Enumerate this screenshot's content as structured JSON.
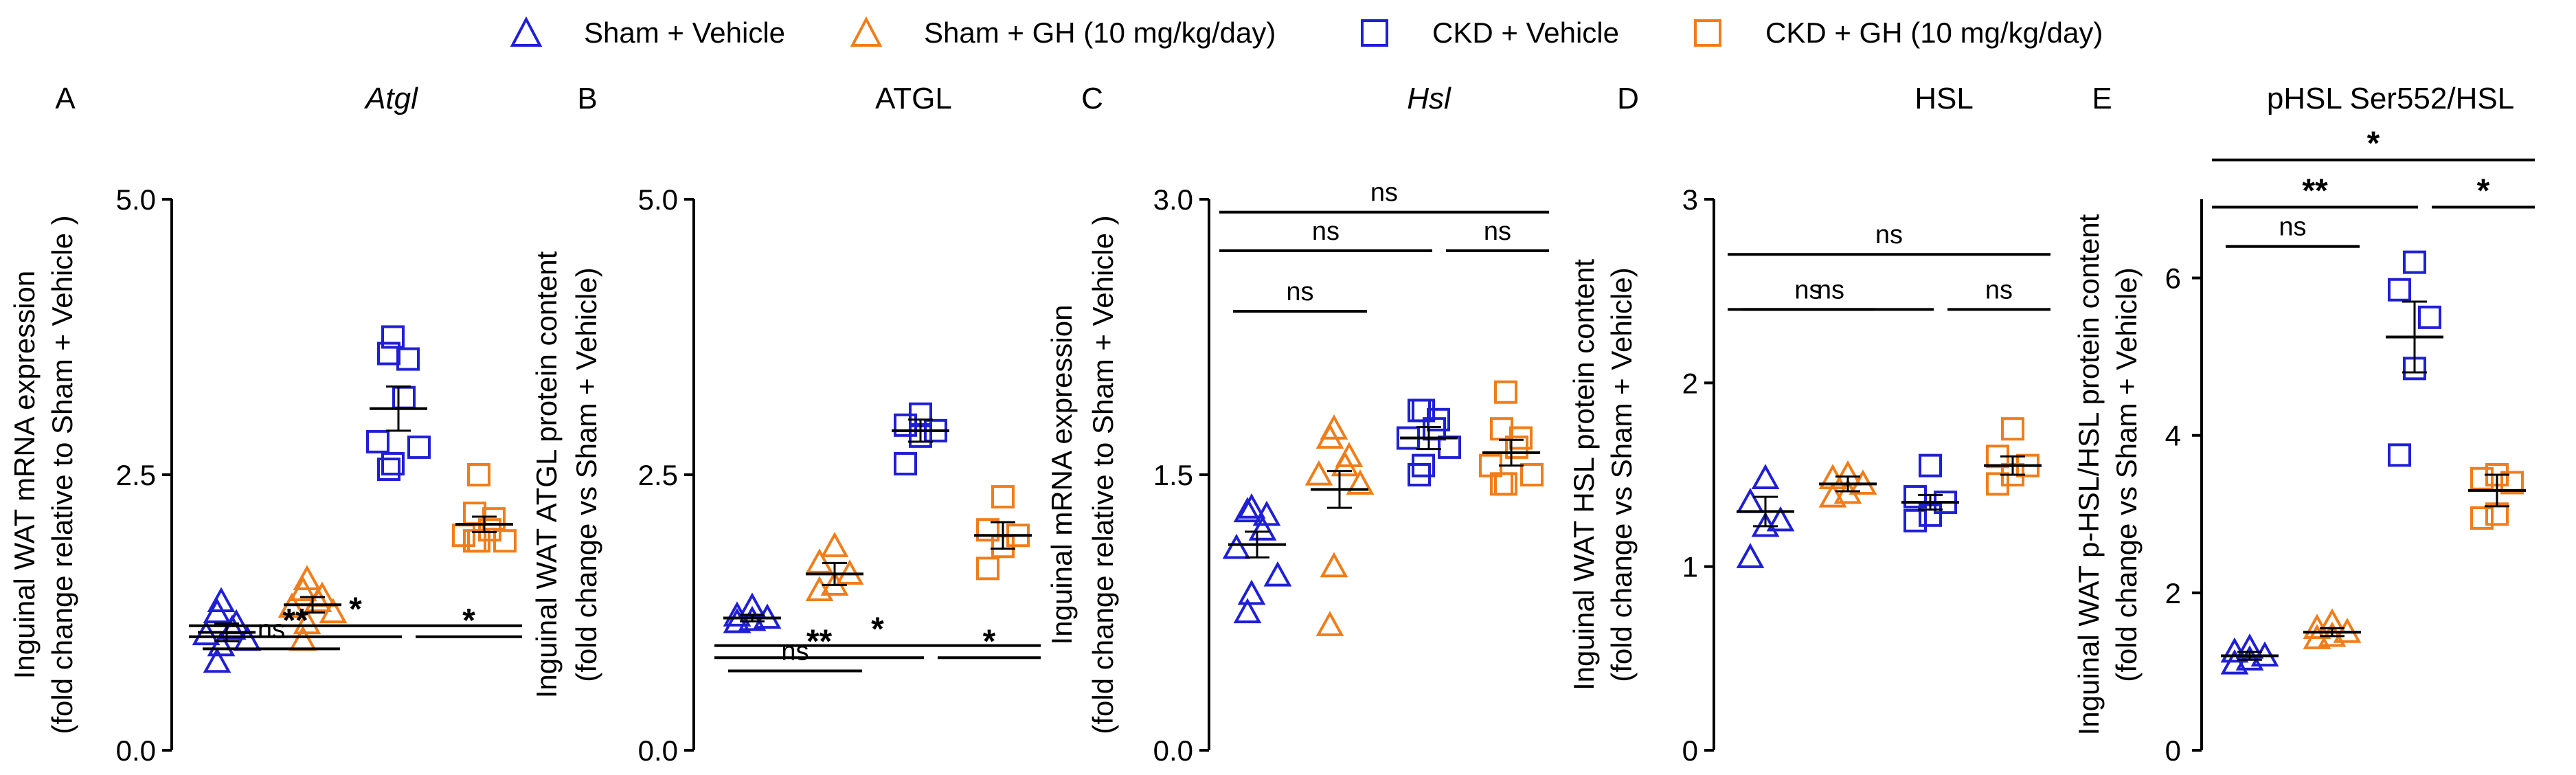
{
  "legend": [
    {
      "label": "Sham + Vehicle",
      "color": "#1f1fd6",
      "marker": "triangle"
    },
    {
      "label": "Sham + GH (10 mg/kg/day)",
      "color": "#f07d1a",
      "marker": "triangle"
    },
    {
      "label": "CKD + Vehicle",
      "color": "#1f1fd6",
      "marker": "square"
    },
    {
      "label": "CKD + GH (10 mg/kg/day)",
      "color": "#f07d1a",
      "marker": "square"
    }
  ],
  "chart_data": [
    {
      "type": "scatter",
      "panel_letter": "A",
      "title": "Atgl",
      "title_italic": true,
      "ylabel": [
        "Inguinal WAT mRNA expression",
        "(fold change relative to Sham + Vehicle )"
      ],
      "ylim": [
        0,
        5
      ],
      "yticks": [
        "0.0",
        "2.5",
        "5.0"
      ],
      "ytick_values": [
        0,
        2.5,
        5
      ],
      "groups": [
        {
          "name": "Sham + Vehicle",
          "marker": "triangle",
          "color": "#1f1fd6",
          "mean": 1.07,
          "sem": 0.08,
          "values": [
            1.35,
            1.25,
            1.15,
            1.1,
            1.05,
            1.0,
            0.95,
            0.8
          ]
        },
        {
          "name": "Sham + GH (10 mg/kg/day)",
          "marker": "triangle",
          "color": "#f07d1a",
          "mean": 1.32,
          "sem": 0.07,
          "values": [
            1.55,
            1.45,
            1.4,
            1.35,
            1.3,
            1.25,
            1.15,
            1.0
          ]
        },
        {
          "name": "CKD + Vehicle",
          "marker": "square",
          "color": "#1f1fd6",
          "mean": 3.1,
          "sem": 0.2,
          "values": [
            3.75,
            3.6,
            3.55,
            3.2,
            2.8,
            2.75,
            2.6,
            2.55
          ]
        },
        {
          "name": "CKD + GH (10 mg/kg/day)",
          "marker": "square",
          "color": "#f07d1a",
          "mean": 2.05,
          "sem": 0.07,
          "values": [
            2.5,
            2.15,
            2.1,
            2.0,
            1.95,
            1.9,
            1.9,
            1.9
          ]
        }
      ],
      "comparisons": [
        {
          "from": 0,
          "to": 1,
          "label": "ns",
          "level": 0.92
        },
        {
          "from": 0,
          "to": 2,
          "label": "**",
          "level": 1.03
        },
        {
          "from": 2,
          "to": 3,
          "label": "*",
          "level": 1.03
        },
        {
          "from": 0,
          "to": 3,
          "label": "*",
          "level": 1.13
        }
      ]
    },
    {
      "type": "scatter",
      "panel_letter": "B",
      "title": "ATGL",
      "title_italic": false,
      "ylabel": [
        "Inguinal WAT ATGL protein content",
        "(fold change vs Sham + Vehicle)"
      ],
      "ylim": [
        0,
        5
      ],
      "yticks": [
        "0.0",
        "2.5",
        "5.0"
      ],
      "ytick_values": [
        0,
        2.5,
        5
      ],
      "groups": [
        {
          "name": "Sham + Vehicle",
          "marker": "triangle",
          "color": "#1f1fd6",
          "mean": 1.2,
          "sem": 0.03,
          "values": [
            1.3,
            1.22,
            1.2,
            1.18,
            1.16
          ]
        },
        {
          "name": "Sham + GH (10 mg/kg/day)",
          "marker": "triangle",
          "color": "#f07d1a",
          "mean": 1.6,
          "sem": 0.1,
          "values": [
            1.85,
            1.7,
            1.6,
            1.5,
            1.45
          ]
        },
        {
          "name": "CKD + Vehicle",
          "marker": "square",
          "color": "#1f1fd6",
          "mean": 2.9,
          "sem": 0.1,
          "values": [
            3.05,
            2.95,
            2.9,
            2.85,
            2.6
          ]
        },
        {
          "name": "CKD + GH (10 mg/kg/day)",
          "marker": "square",
          "color": "#f07d1a",
          "mean": 1.95,
          "sem": 0.12,
          "values": [
            2.3,
            2.0,
            1.95,
            1.85,
            1.65
          ]
        }
      ],
      "comparisons": [
        {
          "from": 0,
          "to": 1,
          "label": "ns",
          "level": 0.72
        },
        {
          "from": 0,
          "to": 2,
          "label": "**",
          "level": 0.84
        },
        {
          "from": 2,
          "to": 3,
          "label": "*",
          "level": 0.84
        },
        {
          "from": 0,
          "to": 3,
          "label": "*",
          "level": 0.95
        }
      ]
    },
    {
      "type": "scatter",
      "panel_letter": "C",
      "title": "Hsl",
      "title_italic": true,
      "ylabel": [
        "Inguinal mRNA expression",
        "(fold change relative to Sham + Vehicle )"
      ],
      "ylim": [
        0,
        3
      ],
      "yticks": [
        "0.0",
        "1.5",
        "3.0"
      ],
      "ytick_values": [
        0,
        1.5,
        3
      ],
      "groups": [
        {
          "name": "Sham + Vehicle",
          "marker": "triangle",
          "color": "#1f1fd6",
          "mean": 1.12,
          "sem": 0.07,
          "values": [
            1.32,
            1.3,
            1.28,
            1.2,
            1.1,
            0.95,
            0.85,
            0.75
          ]
        },
        {
          "name": "Sham + GH (10 mg/kg/day)",
          "marker": "triangle",
          "color": "#f07d1a",
          "mean": 1.42,
          "sem": 0.1,
          "values": [
            1.75,
            1.7,
            1.6,
            1.55,
            1.5,
            1.45,
            1.0,
            0.68
          ]
        },
        {
          "name": "CKD + Vehicle",
          "marker": "square",
          "color": "#1f1fd6",
          "mean": 1.7,
          "sem": 0.06,
          "values": [
            1.85,
            1.85,
            1.8,
            1.75,
            1.7,
            1.65,
            1.55,
            1.5
          ]
        },
        {
          "name": "CKD + GH (10 mg/kg/day)",
          "marker": "square",
          "color": "#f07d1a",
          "mean": 1.62,
          "sem": 0.07,
          "values": [
            1.95,
            1.75,
            1.7,
            1.65,
            1.55,
            1.5,
            1.45,
            1.45
          ]
        }
      ],
      "comparisons": [
        {
          "from": 0,
          "to": 1,
          "label": "ns",
          "level": 2.39
        },
        {
          "from": 0,
          "to": 2,
          "label": "ns",
          "level": 2.72
        },
        {
          "from": 2,
          "to": 3,
          "label": "ns",
          "level": 2.72
        },
        {
          "from": 0,
          "to": 3,
          "label": "ns",
          "level": 2.93
        }
      ]
    },
    {
      "type": "scatter",
      "panel_letter": "D",
      "title": "HSL",
      "title_italic": false,
      "ylabel": [
        "Inguinal WAT HSL protein content",
        "(fold change vs Sham + Vehicle)"
      ],
      "ylim": [
        0,
        3
      ],
      "yticks": [
        "0",
        "1",
        "2",
        "3"
      ],
      "ytick_values": [
        0,
        1,
        2,
        3
      ],
      "groups": [
        {
          "name": "Sham + Vehicle",
          "marker": "triangle",
          "color": "#1f1fd6",
          "mean": 1.3,
          "sem": 0.08,
          "values": [
            1.48,
            1.35,
            1.25,
            1.22,
            1.05
          ]
        },
        {
          "name": "Sham + GH (10 mg/kg/day)",
          "marker": "triangle",
          "color": "#f07d1a",
          "mean": 1.45,
          "sem": 0.04,
          "values": [
            1.5,
            1.48,
            1.45,
            1.4,
            1.38
          ]
        },
        {
          "name": "CKD + Vehicle",
          "marker": "square",
          "color": "#1f1fd6",
          "mean": 1.35,
          "sem": 0.04,
          "values": [
            1.55,
            1.38,
            1.35,
            1.28,
            1.25
          ]
        },
        {
          "name": "CKD + GH (10 mg/kg/day)",
          "marker": "square",
          "color": "#f07d1a",
          "mean": 1.55,
          "sem": 0.05,
          "values": [
            1.75,
            1.6,
            1.55,
            1.5,
            1.45
          ]
        }
      ],
      "comparisons": [
        {
          "from": 0,
          "to": 1,
          "label": "ns",
          "level": 2.4
        },
        {
          "from": 0,
          "to": 2,
          "label": "ns",
          "level": 2.4
        },
        {
          "from": 2,
          "to": 3,
          "label": "ns",
          "level": 2.4
        },
        {
          "from": 0,
          "to": 3,
          "label": "ns",
          "level": 2.7
        }
      ]
    },
    {
      "type": "scatter",
      "panel_letter": "E",
      "title": "pHSL Ser552/HSL",
      "title_italic": false,
      "ylabel": [
        "Inguinal WAT p-HSL/HSL protein content",
        "(fold change vs Sham + Vehicle)"
      ],
      "ylim": [
        0,
        7
      ],
      "yticks": [
        "0",
        "2",
        "4",
        "6"
      ],
      "ytick_values": [
        0,
        2,
        4,
        6
      ],
      "groups": [
        {
          "name": "Sham + Vehicle",
          "marker": "triangle",
          "color": "#1f1fd6",
          "mean": 1.2,
          "sem": 0.05,
          "values": [
            1.3,
            1.25,
            1.2,
            1.15,
            1.1
          ]
        },
        {
          "name": "Sham + GH (10 mg/kg/day)",
          "marker": "triangle",
          "color": "#f07d1a",
          "mean": 1.5,
          "sem": 0.05,
          "values": [
            1.62,
            1.55,
            1.5,
            1.45,
            1.42
          ]
        },
        {
          "name": "CKD + Vehicle",
          "marker": "square",
          "color": "#1f1fd6",
          "mean": 5.25,
          "sem": 0.45,
          "values": [
            6.2,
            5.85,
            5.5,
            4.85,
            3.75
          ]
        },
        {
          "name": "CKD + GH (10 mg/kg/day)",
          "marker": "square",
          "color": "#f07d1a",
          "mean": 3.3,
          "sem": 0.2,
          "values": [
            3.5,
            3.45,
            3.4,
            3.0,
            2.95
          ]
        }
      ],
      "comparisons": [
        {
          "from": 0,
          "to": 1,
          "label": "ns",
          "level": 6.4
        },
        {
          "from": 0,
          "to": 2,
          "label": "**",
          "level": 6.9
        },
        {
          "from": 2,
          "to": 3,
          "label": "*",
          "level": 6.9
        },
        {
          "from": 0,
          "to": 3,
          "label": "*",
          "level": 7.5
        }
      ]
    }
  ]
}
